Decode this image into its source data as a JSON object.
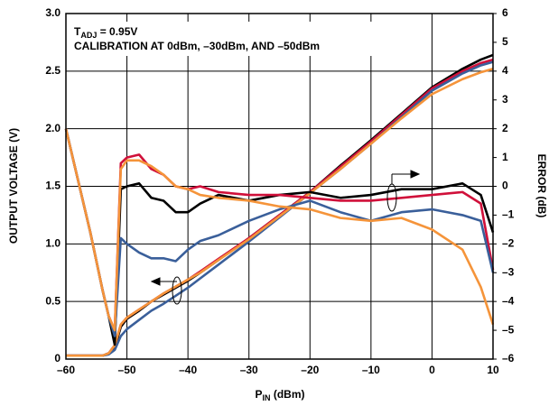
{
  "chart_data": {
    "type": "line",
    "annotation": {
      "symbol": "T",
      "subscript": "ADJ",
      "value": " = 0.95V",
      "line2": "CALIBRATION AT 0dBm, –30dBm, AND –50dBm"
    },
    "x_label": {
      "symbol": "P",
      "subscript": "IN",
      "unit": " (dBm)"
    },
    "y_label": "OUTPUT VOLTAGE (V)",
    "y2_label": "ERROR (dB)",
    "grid": true,
    "x": [
      -60,
      -58,
      -56,
      -54,
      -53,
      -52,
      -51,
      -50,
      -48,
      -46,
      -44,
      -42,
      -40,
      -38,
      -35,
      -30,
      -25,
      -20,
      -15,
      -10,
      -5,
      0,
      5,
      8,
      10
    ],
    "xlim": [
      -60,
      10
    ],
    "xticks": [
      {
        "value": -60,
        "label": "–60"
      },
      {
        "value": -50,
        "label": "–50"
      },
      {
        "value": -40,
        "label": "–40"
      },
      {
        "value": -30,
        "label": "–30"
      },
      {
        "value": -20,
        "label": "–20"
      },
      {
        "value": -10,
        "label": "–10"
      },
      0,
      10
    ],
    "ylim": [
      0,
      3
    ],
    "yticks": [
      0,
      0.5,
      {
        "value": 1,
        "label": "1.0"
      },
      1.5,
      {
        "value": 2,
        "label": "2.0"
      },
      2.5,
      {
        "value": 3,
        "label": "3.0"
      }
    ],
    "y2lim": [
      -6,
      6
    ],
    "y2ticks": [
      {
        "value": -6,
        "label": "–6"
      },
      {
        "value": -5,
        "label": "–5"
      },
      {
        "value": -4,
        "label": "–4"
      },
      {
        "value": -3,
        "label": "–3"
      },
      {
        "value": -2,
        "label": "–2"
      },
      {
        "value": -1,
        "label": "–1"
      },
      0,
      1,
      2,
      3,
      4,
      5,
      6
    ],
    "series": [
      {
        "color": "#000000",
        "axis": "y",
        "values": [
          0.03,
          0.03,
          0.03,
          0.03,
          0.05,
          0.1,
          0.28,
          0.35,
          0.42,
          0.5,
          0.56,
          0.62,
          0.68,
          0.75,
          0.86,
          1.05,
          1.25,
          1.45,
          1.68,
          1.9,
          2.13,
          2.36,
          2.52,
          2.6,
          2.64
        ]
      },
      {
        "color": "#d0103a",
        "axis": "y",
        "values": [
          0.03,
          0.03,
          0.03,
          0.03,
          0.05,
          0.12,
          0.3,
          0.36,
          0.43,
          0.5,
          0.57,
          0.63,
          0.69,
          0.76,
          0.87,
          1.05,
          1.25,
          1.45,
          1.67,
          1.89,
          2.12,
          2.35,
          2.5,
          2.57,
          2.6
        ]
      },
      {
        "color": "#3a5f9a",
        "axis": "y",
        "values": [
          0.03,
          0.03,
          0.03,
          0.03,
          0.04,
          0.08,
          0.2,
          0.26,
          0.34,
          0.42,
          0.48,
          0.55,
          0.62,
          0.7,
          0.82,
          1.02,
          1.23,
          1.44,
          1.65,
          1.87,
          2.1,
          2.33,
          2.48,
          2.55,
          2.58
        ]
      },
      {
        "color": "#f5943a",
        "axis": "y",
        "values": [
          0.03,
          0.03,
          0.03,
          0.03,
          0.05,
          0.12,
          0.3,
          0.36,
          0.43,
          0.5,
          0.57,
          0.63,
          0.69,
          0.75,
          0.86,
          1.04,
          1.24,
          1.44,
          1.65,
          1.87,
          2.09,
          2.3,
          2.43,
          2.49,
          2.52
        ]
      },
      {
        "color": "#000000",
        "axis": "y2",
        "values": [
          2.0,
          0.2,
          -1.6,
          -3.6,
          -4.5,
          -5.5,
          -0.1,
          0,
          0.1,
          -0.4,
          -0.5,
          -0.9,
          -0.9,
          -0.6,
          -0.3,
          -0.5,
          -0.3,
          -0.2,
          -0.4,
          -0.3,
          -0.1,
          -0.1,
          0.1,
          -0.3,
          -1.6
        ]
      },
      {
        "color": "#d0103a",
        "axis": "y2",
        "values": [
          2.0,
          0.2,
          -1.6,
          -3.6,
          -4.5,
          -5.0,
          0.8,
          1.0,
          1.1,
          0.6,
          0.4,
          0,
          -0.1,
          0,
          -0.2,
          -0.3,
          -0.3,
          -0.4,
          -0.5,
          -0.5,
          -0.4,
          -0.3,
          -0.2,
          -0.6,
          -2.9
        ]
      },
      {
        "color": "#3a5f9a",
        "axis": "y2",
        "values": [
          2.0,
          0.2,
          -1.6,
          -3.6,
          -4.5,
          -5.2,
          -1.8,
          -2.0,
          -2.3,
          -2.5,
          -2.5,
          -2.6,
          -2.2,
          -1.9,
          -1.7,
          -1.2,
          -0.8,
          -0.5,
          -0.9,
          -1.2,
          -0.9,
          -0.8,
          -1.0,
          -1.2,
          -3.0
        ]
      },
      {
        "color": "#f5943a",
        "axis": "y2",
        "values": [
          2.0,
          0.2,
          -1.6,
          -3.6,
          -4.5,
          -5.0,
          0.6,
          0.9,
          0.9,
          0.7,
          0.4,
          0,
          -0.1,
          -0.3,
          -0.4,
          -0.5,
          -0.7,
          -0.8,
          -1.1,
          -1.2,
          -1.1,
          -1.5,
          -2.2,
          -3.5,
          -4.8
        ]
      }
    ]
  }
}
